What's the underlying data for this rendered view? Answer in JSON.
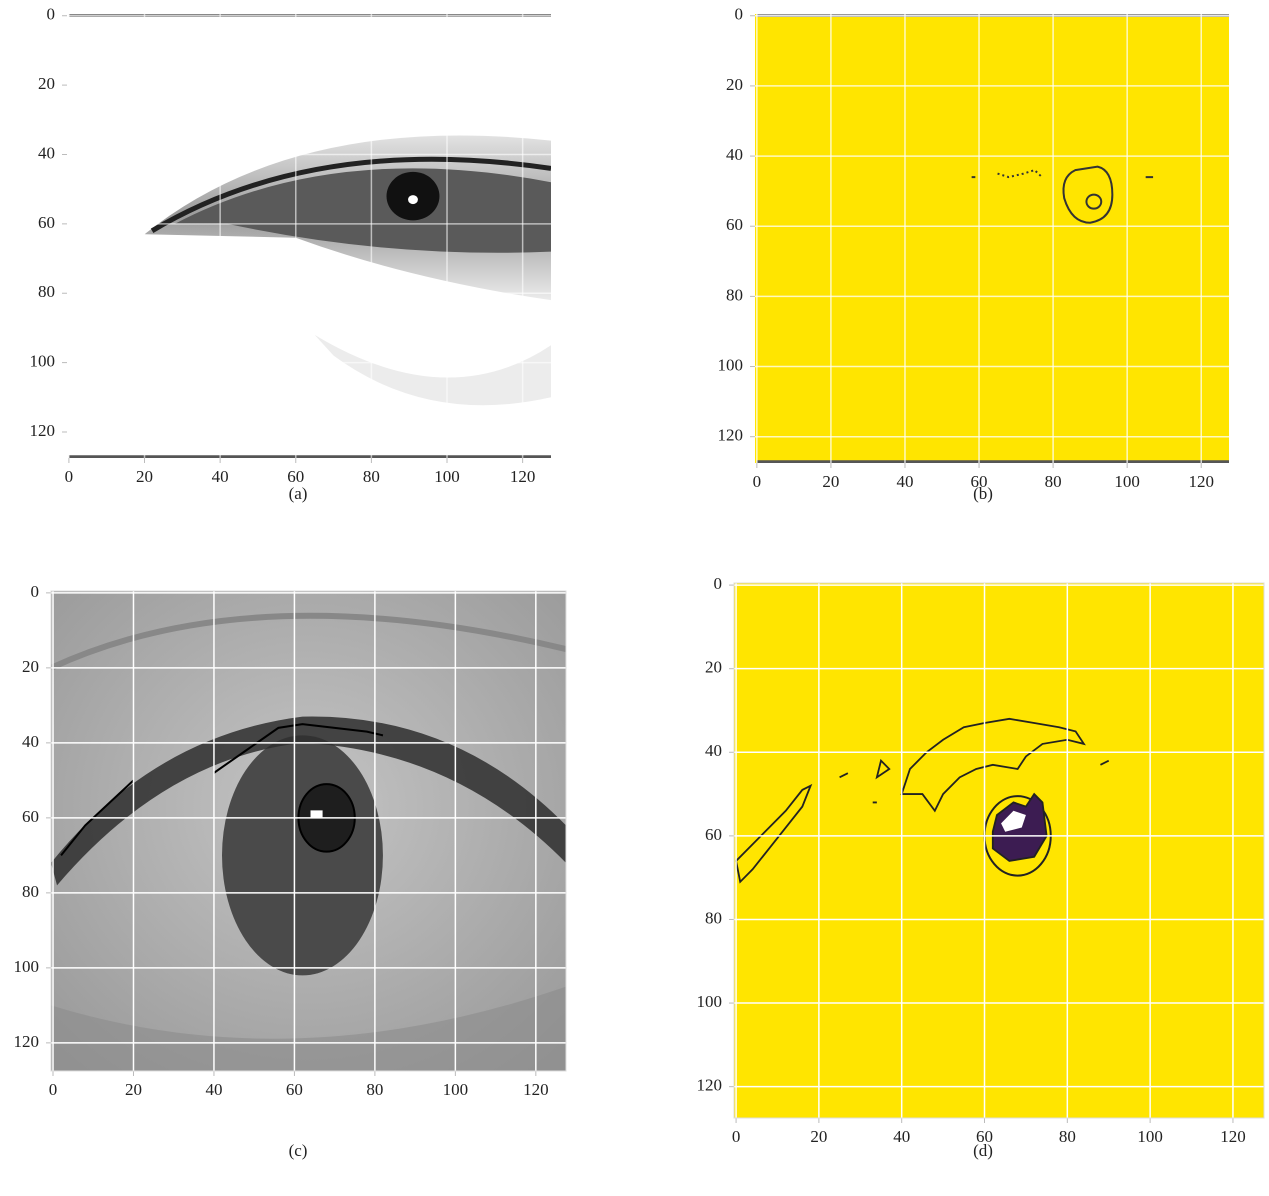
{
  "chart_data": [
    {
      "type": "image",
      "caption": "(a)",
      "xlim": [
        -0.5,
        127.5
      ],
      "ylim": [
        127.5,
        -0.5
      ],
      "xticks": [
        0,
        20,
        40,
        60,
        80,
        100,
        120
      ],
      "yticks": [
        0,
        20,
        40,
        60,
        80,
        100,
        120
      ],
      "grid": true
    },
    {
      "type": "image",
      "caption": "(b)",
      "xlim": [
        -0.5,
        127.5
      ],
      "ylim": [
        127.5,
        -0.5
      ],
      "xticks": [
        0,
        20,
        40,
        60,
        80,
        100,
        120
      ],
      "yticks": [
        0,
        20,
        40,
        60,
        80,
        100,
        120
      ],
      "grid": true
    },
    {
      "type": "image",
      "caption": "(c)",
      "xlim": [
        -0.5,
        127.5
      ],
      "ylim": [
        127.5,
        -0.5
      ],
      "xticks": [
        0,
        20,
        40,
        60,
        80,
        100,
        120
      ],
      "yticks": [
        0,
        20,
        40,
        60,
        80,
        100,
        120
      ],
      "grid": true
    },
    {
      "type": "image",
      "caption": "(d)",
      "xlim": [
        -0.5,
        127.5
      ],
      "ylim": [
        127.5,
        -0.5
      ],
      "xticks": [
        0,
        20,
        40,
        60,
        80,
        100,
        120
      ],
      "yticks": [
        0,
        20,
        40,
        60,
        80,
        100,
        120
      ],
      "grid": true
    }
  ]
}
